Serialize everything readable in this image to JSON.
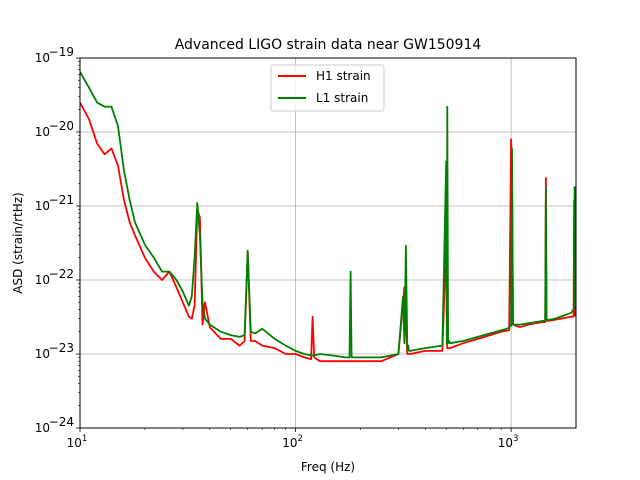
{
  "chart_data": {
    "type": "line",
    "title": "Advanced LIGO strain data near GW150914",
    "xlabel": "Freq (Hz)",
    "ylabel": "ASD (strain/rtHz)",
    "xscale": "log",
    "yscale": "log",
    "xlim": [
      10,
      2000
    ],
    "ylim": [
      1e-24,
      1e-19
    ],
    "grid": true,
    "legend_position": "top-center",
    "xticks": [
      {
        "value": 10,
        "base": "10",
        "exp": "1"
      },
      {
        "value": 100,
        "base": "10",
        "exp": "2"
      },
      {
        "value": 1000,
        "base": "10",
        "exp": "3"
      }
    ],
    "yticks": [
      {
        "value": 1e-24,
        "base": "10",
        "exp": "−24"
      },
      {
        "value": 1e-23,
        "base": "10",
        "exp": "−23"
      },
      {
        "value": 1e-22,
        "base": "10",
        "exp": "−22"
      },
      {
        "value": 1e-21,
        "base": "10",
        "exp": "−21"
      },
      {
        "value": 1e-20,
        "base": "10",
        "exp": "−20"
      },
      {
        "value": 1e-19,
        "base": "10",
        "exp": "−19"
      }
    ],
    "series": [
      {
        "name": "H1 strain",
        "color": "#ff0000",
        "x": [
          10,
          11,
          12,
          13,
          14,
          15,
          16,
          17,
          18,
          20,
          22,
          24,
          26,
          28,
          30,
          32,
          33,
          34,
          35,
          36,
          37,
          38,
          40,
          45,
          50,
          55,
          58,
          60,
          62,
          65,
          70,
          80,
          90,
          100,
          110,
          118,
          120,
          122,
          130,
          150,
          170,
          180,
          200,
          250,
          300,
          320,
          330,
          340,
          400,
          480,
          500,
          505,
          510,
          520,
          600,
          700,
          800,
          900,
          980,
          1000,
          1010,
          1020,
          1100,
          1200,
          1300,
          1400,
          1440,
          1450,
          1460,
          1500,
          1600,
          1700,
          1800,
          1900,
          1950,
          1960,
          1970,
          2000
        ],
        "y": [
          2.5e-20,
          1.5e-20,
          7e-21,
          5e-21,
          6e-21,
          3.5e-21,
          1.2e-21,
          6e-22,
          4e-22,
          2e-22,
          1.3e-22,
          1e-22,
          1.3e-22,
          8e-23,
          5e-23,
          3.2e-23,
          3e-23,
          4.5e-23,
          9e-22,
          7e-22,
          2.5e-23,
          5e-23,
          2.3e-23,
          1.6e-23,
          1.6e-23,
          1.3e-23,
          1.5e-23,
          2.4e-22,
          1.5e-23,
          1.5e-23,
          1.3e-23,
          1.2e-23,
          1e-23,
          1e-23,
          9e-24,
          8.5e-24,
          3.2e-23,
          9e-24,
          8e-24,
          8e-24,
          8e-24,
          8e-24,
          8e-24,
          8e-24,
          1e-23,
          8e-23,
          1e-23,
          1e-23,
          1.1e-23,
          1.1e-23,
          3.5e-22,
          1.2e-23,
          1.2e-23,
          1.2e-23,
          1.4e-23,
          1.6e-23,
          1.8e-23,
          2e-23,
          2.1e-23,
          8e-21,
          3.5e-21,
          2.5e-23,
          2.3e-23,
          2.5e-23,
          2.6e-23,
          2.7e-23,
          2.7e-23,
          2.4e-21,
          2.8e-23,
          2.8e-23,
          2.9e-23,
          3e-23,
          3.1e-23,
          3.2e-23,
          3.2e-23,
          1.2e-21,
          3.3e-23,
          3.3e-23
        ]
      },
      {
        "name": "L1 strain",
        "color": "#008000",
        "x": [
          10,
          11,
          12,
          13,
          14,
          15,
          16,
          17,
          18,
          20,
          22,
          24,
          26,
          28,
          30,
          32,
          33,
          34,
          35,
          36,
          37,
          38,
          40,
          45,
          50,
          55,
          58,
          60,
          62,
          65,
          70,
          80,
          90,
          100,
          110,
          120,
          130,
          150,
          170,
          178,
          180,
          182,
          200,
          250,
          300,
          315,
          320,
          325,
          330,
          333,
          336,
          340,
          400,
          480,
          500,
          503,
          506,
          510,
          513,
          516,
          520,
          600,
          700,
          800,
          900,
          960,
          980,
          990,
          1000,
          1010,
          1020,
          1100,
          1200,
          1300,
          1400,
          1440,
          1450,
          1460,
          1500,
          1600,
          1700,
          1800,
          1900,
          1950,
          1960,
          1970,
          2000
        ],
        "y": [
          6.5e-20,
          4e-20,
          2.5e-20,
          2.2e-20,
          2.2e-20,
          1.2e-20,
          3e-21,
          1.2e-21,
          6e-22,
          3e-22,
          2e-22,
          1.3e-22,
          1.3e-22,
          1e-22,
          7e-23,
          4.5e-23,
          6e-23,
          2e-22,
          1.1e-21,
          4e-22,
          5e-23,
          3e-23,
          2.5e-23,
          2e-23,
          1.8e-23,
          1.7e-23,
          1.8e-23,
          2.5e-22,
          2e-23,
          1.9e-23,
          2.2e-23,
          1.6e-23,
          1.3e-23,
          1.1e-23,
          1e-23,
          9.5e-24,
          1e-23,
          9.5e-24,
          9e-24,
          9e-24,
          1.3e-22,
          9e-24,
          9e-24,
          9e-24,
          1e-23,
          6e-23,
          1.4e-23,
          2.9e-22,
          1.2e-23,
          1.3e-23,
          1.1e-23,
          1.1e-23,
          1.2e-23,
          1.3e-23,
          4e-21,
          1.4e-23,
          2.2e-20,
          1.4e-23,
          1.5e-23,
          1.5e-23,
          1.4e-23,
          1.5e-23,
          1.7e-23,
          1.9e-23,
          2.1e-23,
          2.2e-23,
          2.3e-23,
          2.4e-23,
          2.4e-23,
          6e-21,
          2.5e-23,
          2.5e-23,
          2.6e-23,
          2.7e-23,
          2.8e-23,
          2.8e-23,
          1.8e-21,
          2.9e-23,
          2.9e-23,
          3e-23,
          3.2e-23,
          3.4e-23,
          3.6e-23,
          4e-23,
          4.5e-23,
          1.8e-21,
          3.5e-23
        ]
      }
    ]
  }
}
